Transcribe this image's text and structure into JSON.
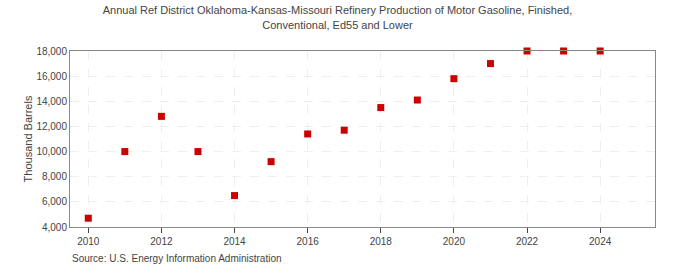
{
  "chart_data": {
    "type": "scatter",
    "title": "Annual Ref District Oklahoma-Kansas-Missouri Refinery Production of Motor Gasoline, Finished,",
    "subtitle": "Conventional, Ed55 and Lower",
    "ylabel": "Thousand Barrels",
    "annotations": [
      "Source: U.S. Energy Information Administration"
    ],
    "x": [
      2010,
      2011,
      2012,
      2013,
      2014,
      2015,
      2016,
      2017,
      2018,
      2019,
      2020,
      2021,
      2022,
      2023,
      2024
    ],
    "values": [
      4700,
      10000,
      12800,
      10000,
      6500,
      9200,
      11400,
      11700,
      13500,
      14100,
      15800,
      17000,
      18000,
      18000,
      18000
    ],
    "color": "#cc0000",
    "marker": "square",
    "xlim": [
      2009.5,
      2025.5
    ],
    "xticks": [
      2010,
      2012,
      2014,
      2016,
      2018,
      2020,
      2022,
      2024
    ],
    "ylim": [
      4000,
      18000
    ],
    "yticks": [
      {
        "value": 4000,
        "label": "4,000"
      },
      {
        "value": 6000,
        "label": "6,000"
      },
      {
        "value": 8000,
        "label": "8,000"
      },
      {
        "value": 10000,
        "label": "10,000"
      },
      {
        "value": 12000,
        "label": "12,000"
      },
      {
        "value": 14000,
        "label": "14,000"
      },
      {
        "value": 16000,
        "label": "16,000"
      },
      {
        "value": 18000,
        "label": "18,000"
      }
    ],
    "grid": true
  }
}
